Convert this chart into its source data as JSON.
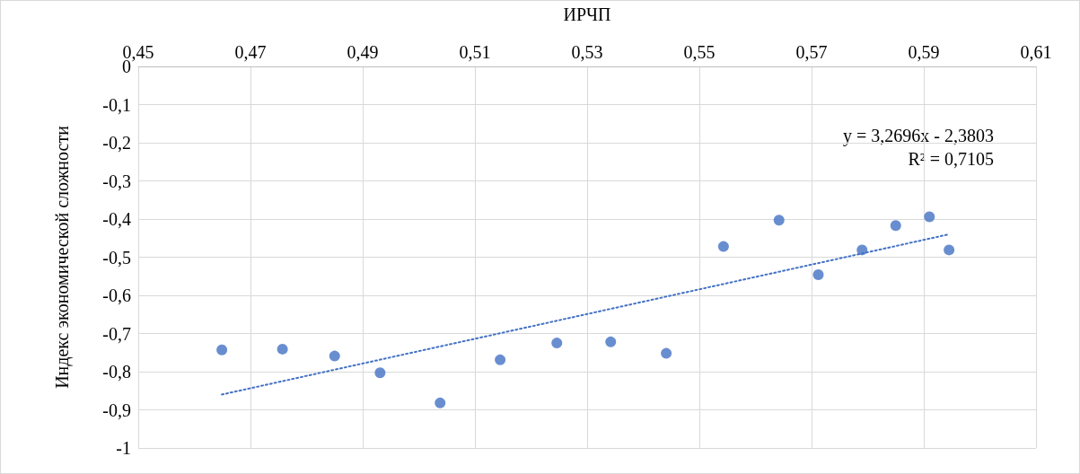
{
  "chart_data": {
    "type": "scatter",
    "xlabel": "ИРЧП",
    "ylabel": "Индекс экономической сложности",
    "series": [
      {
        "color": "#4472c4",
        "marker": "circle",
        "x": [
          0.4649,
          0.4757,
          0.485,
          0.4931,
          0.5038,
          0.5145,
          0.5246,
          0.5342,
          0.5441,
          0.5543,
          0.5642,
          0.5712,
          0.579,
          0.585,
          0.591,
          0.5945
        ],
        "values": [
          -0.743,
          -0.741,
          -0.759,
          -0.803,
          -0.882,
          -0.769,
          -0.725,
          -0.722,
          -0.752,
          -0.472,
          -0.403,
          -0.546,
          -0.481,
          -0.417,
          -0.394,
          -0.481
        ]
      },
      {
        "type": "line",
        "color": "#4472c4",
        "marker": "none",
        "line_style": "dotted",
        "x": [
          0.4649,
          0.5945
        ],
        "values": [
          -0.86,
          -0.44
        ]
      }
    ],
    "annotations": [
      "y = 3,2696x - 2,3803",
      "R² = 0,7105"
    ],
    "xlim": [
      0.45,
      0.61
    ],
    "xticks": [
      {
        "value": 0.45,
        "label": "0,45"
      },
      {
        "value": 0.47,
        "label": "0,47"
      },
      {
        "value": 0.49,
        "label": "0,49"
      },
      {
        "value": 0.51,
        "label": "0,51"
      },
      {
        "value": 0.53,
        "label": "0,53"
      },
      {
        "value": 0.55,
        "label": "0,55"
      },
      {
        "value": 0.57,
        "label": "0,57"
      },
      {
        "value": 0.59,
        "label": "0,59"
      },
      {
        "value": 0.61,
        "label": "0,61"
      }
    ],
    "ylim": [
      -1,
      0
    ],
    "yticks": [
      0,
      {
        "value": -0.1,
        "label": "-0,1"
      },
      {
        "value": -0.2,
        "label": "-0,2"
      },
      {
        "value": -0.3,
        "label": "-0,3"
      },
      {
        "value": -0.4,
        "label": "-0,4"
      },
      {
        "value": -0.5,
        "label": "-0,5"
      },
      {
        "value": -0.6,
        "label": "-0,6"
      },
      {
        "value": -0.7,
        "label": "-0,7"
      },
      {
        "value": -0.8,
        "label": "-0,8"
      },
      {
        "value": -0.9,
        "label": "-0,9"
      },
      -1
    ],
    "grid": true
  }
}
